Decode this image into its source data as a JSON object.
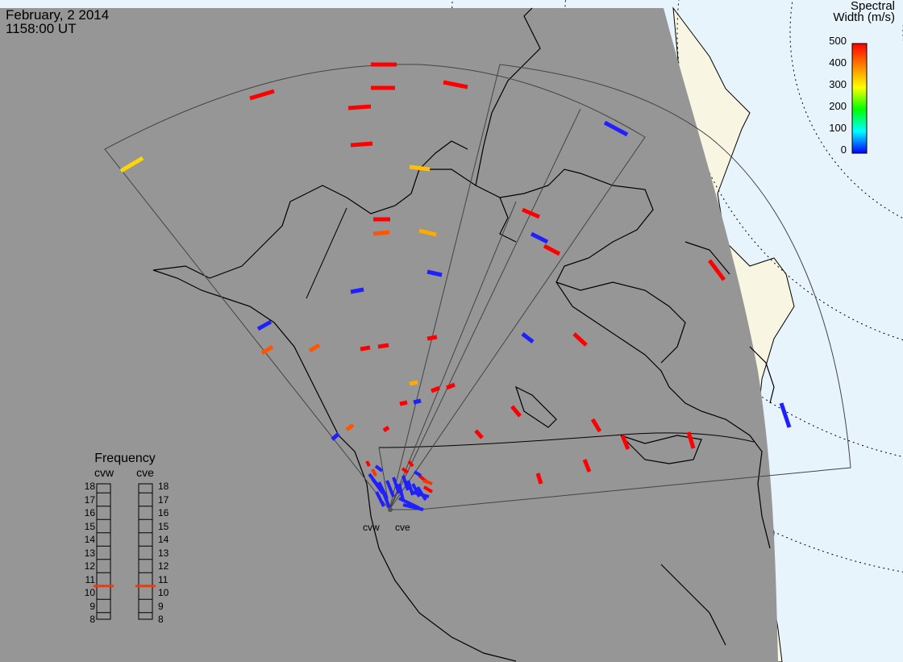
{
  "header": {
    "date": "February, 2 2014",
    "time": "1158:00 UT"
  },
  "colorbar": {
    "title_line1": "Spectral",
    "title_line2": "Width (m/s)",
    "ticks": [
      "500",
      "400",
      "300",
      "200",
      "100",
      "0"
    ],
    "colors": [
      "#ff0000",
      "#ff8000",
      "#ffff00",
      "#00ff00",
      "#00ffff",
      "#0000ff"
    ]
  },
  "radars": [
    {
      "code": "cvw",
      "frequency_mhz": 10.5
    },
    {
      "code": "cve",
      "frequency_mhz": 10.5
    }
  ],
  "frequency_panel": {
    "title": "Frequency",
    "scale": [
      "18",
      "17",
      "16",
      "15",
      "14",
      "13",
      "12",
      "11",
      "10",
      "9",
      "8"
    ]
  },
  "colors": {
    "night_region": "#969696",
    "ocean": "#e8f4fc",
    "land_day": "#f8f6e2",
    "frequency_marker": "#ff3300"
  }
}
